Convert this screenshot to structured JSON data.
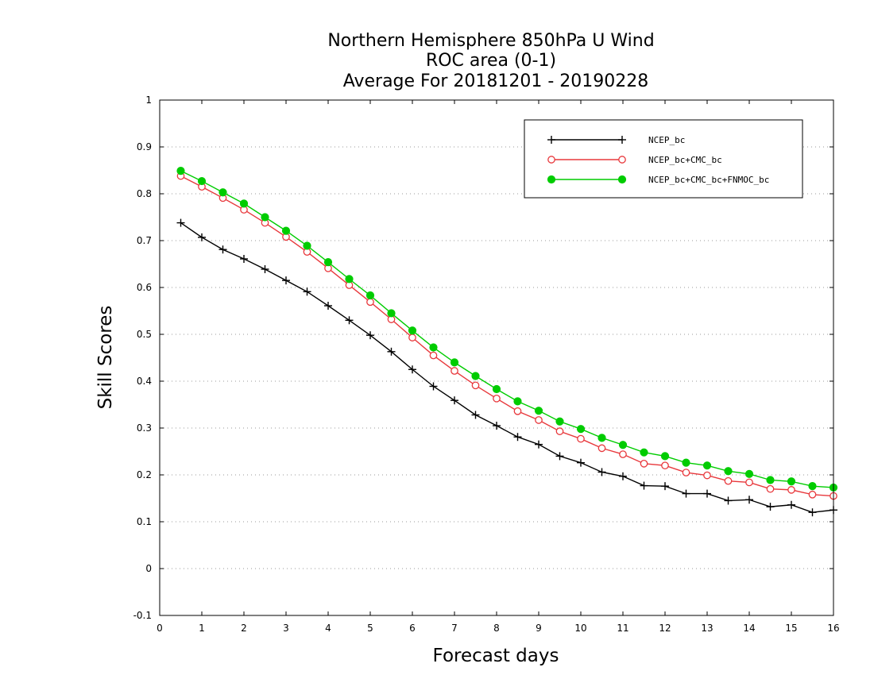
{
  "chart_data": {
    "type": "line",
    "title": [
      "Northern Hemisphere 850hPa U Wind",
      "ROC area (0-1)",
      "Average For 20181201 - 20190228"
    ],
    "xlabel": "Forecast days",
    "ylabel": "Skill Scores",
    "xlim": [
      0,
      16
    ],
    "ylim": [
      -0.1,
      1
    ],
    "xticks": [
      "0",
      "1",
      "2",
      "3",
      "4",
      "5",
      "6",
      "7",
      "8",
      "9",
      "10",
      "11",
      "12",
      "13",
      "14",
      "15",
      "16"
    ],
    "yticks": [
      "1",
      "0.9",
      "0.8",
      "0.7",
      "0.6",
      "0.5",
      "0.4",
      "0.3",
      "0.2",
      "0.1",
      "0",
      "-0.1"
    ],
    "grid": "dotted-horizontal",
    "legend_position": "top-right",
    "x": [
      0.5,
      1,
      1.5,
      2,
      2.5,
      3,
      3.5,
      4,
      4.5,
      5,
      5.5,
      6,
      6.5,
      7,
      7.5,
      8,
      8.5,
      9,
      9.5,
      10,
      10.5,
      11,
      11.5,
      12,
      12.5,
      13,
      13.5,
      14,
      14.5,
      15,
      15.5,
      16
    ],
    "series": [
      {
        "name": "NCEP_bc",
        "color": "#000000",
        "marker": "plus",
        "values": [
          0.738,
          0.707,
          0.681,
          0.661,
          0.639,
          0.615,
          0.591,
          0.561,
          0.53,
          0.498,
          0.463,
          0.425,
          0.389,
          0.359,
          0.328,
          0.305,
          0.281,
          0.265,
          0.24,
          0.226,
          0.206,
          0.197,
          0.177,
          0.176,
          0.16,
          0.16,
          0.145,
          0.147,
          0.132,
          0.136,
          0.12,
          0.125
        ]
      },
      {
        "name": "NCEP_bc+CMC_bc",
        "color": "#e8383c",
        "marker": "open-circle",
        "values": [
          0.838,
          0.815,
          0.791,
          0.766,
          0.738,
          0.708,
          0.676,
          0.641,
          0.605,
          0.569,
          0.532,
          0.493,
          0.455,
          0.422,
          0.391,
          0.363,
          0.336,
          0.317,
          0.293,
          0.277,
          0.257,
          0.244,
          0.224,
          0.22,
          0.205,
          0.199,
          0.187,
          0.184,
          0.17,
          0.168,
          0.158,
          0.155
        ]
      },
      {
        "name": "NCEP_bc+CMC_bc+FNMOC_bc",
        "color": "#00cc00",
        "marker": "filled-circle",
        "values": [
          0.849,
          0.827,
          0.803,
          0.779,
          0.75,
          0.721,
          0.689,
          0.654,
          0.618,
          0.583,
          0.545,
          0.508,
          0.472,
          0.44,
          0.411,
          0.383,
          0.357,
          0.337,
          0.314,
          0.298,
          0.279,
          0.264,
          0.248,
          0.24,
          0.226,
          0.22,
          0.208,
          0.202,
          0.189,
          0.186,
          0.176,
          0.173
        ]
      }
    ]
  }
}
